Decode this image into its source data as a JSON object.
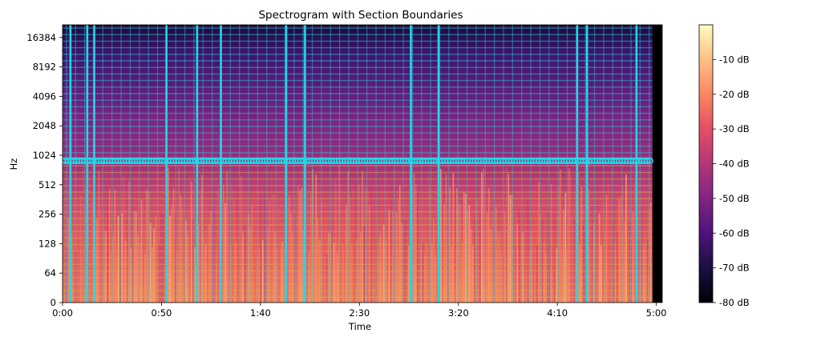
{
  "chart_data": {
    "type": "heatmap",
    "title": "Spectrogram with Section Boundaries",
    "xlabel": "Time",
    "ylabel": "Hz",
    "x_unit": "seconds",
    "xlim": [
      0,
      303
    ],
    "x_ticks": [
      {
        "value": 0,
        "label": "0:00"
      },
      {
        "value": 50,
        "label": "0:50"
      },
      {
        "value": 100,
        "label": "1:40"
      },
      {
        "value": 150,
        "label": "2:30"
      },
      {
        "value": 200,
        "label": "3:20"
      },
      {
        "value": 250,
        "label": "4:10"
      },
      {
        "value": 300,
        "label": "5:00"
      }
    ],
    "y_scale": "symlog",
    "ylim": [
      0,
      22050
    ],
    "y_ticks": [
      {
        "value": 0,
        "label": "0"
      },
      {
        "value": 64,
        "label": "64"
      },
      {
        "value": 128,
        "label": "128"
      },
      {
        "value": 256,
        "label": "256"
      },
      {
        "value": 512,
        "label": "512"
      },
      {
        "value": 1024,
        "label": "1024"
      },
      {
        "value": 2048,
        "label": "2048"
      },
      {
        "value": 4096,
        "label": "4096"
      },
      {
        "value": 8192,
        "label": "8192"
      },
      {
        "value": 16384,
        "label": "16384"
      }
    ],
    "colorbar": {
      "colormap": "magma",
      "range_db": [
        -80,
        0
      ],
      "ticks": [
        {
          "value": -10,
          "label": "-10 dB"
        },
        {
          "value": -20,
          "label": "-20 dB"
        },
        {
          "value": -30,
          "label": "-30 dB"
        },
        {
          "value": -40,
          "label": "-40 dB"
        },
        {
          "value": -50,
          "label": "-50 dB"
        },
        {
          "value": -60,
          "label": "-60 dB"
        },
        {
          "value": -70,
          "label": "-70 dB"
        },
        {
          "value": -80,
          "label": "-80 dB"
        }
      ]
    },
    "section_boundaries": {
      "color": "#22d8e6",
      "times": [
        4.0,
        12.5,
        16.0,
        52.5,
        68.0,
        80.0,
        113.0,
        122.5,
        176.0,
        190.0,
        260.0,
        265.0,
        290.0
      ],
      "marker_frequency_hz": 900,
      "marker_x_range": [
        0,
        298
      ]
    },
    "colors": {
      "boundary": "#22d8e6",
      "grid_line": "#e8a040",
      "silence": "#000004"
    }
  }
}
